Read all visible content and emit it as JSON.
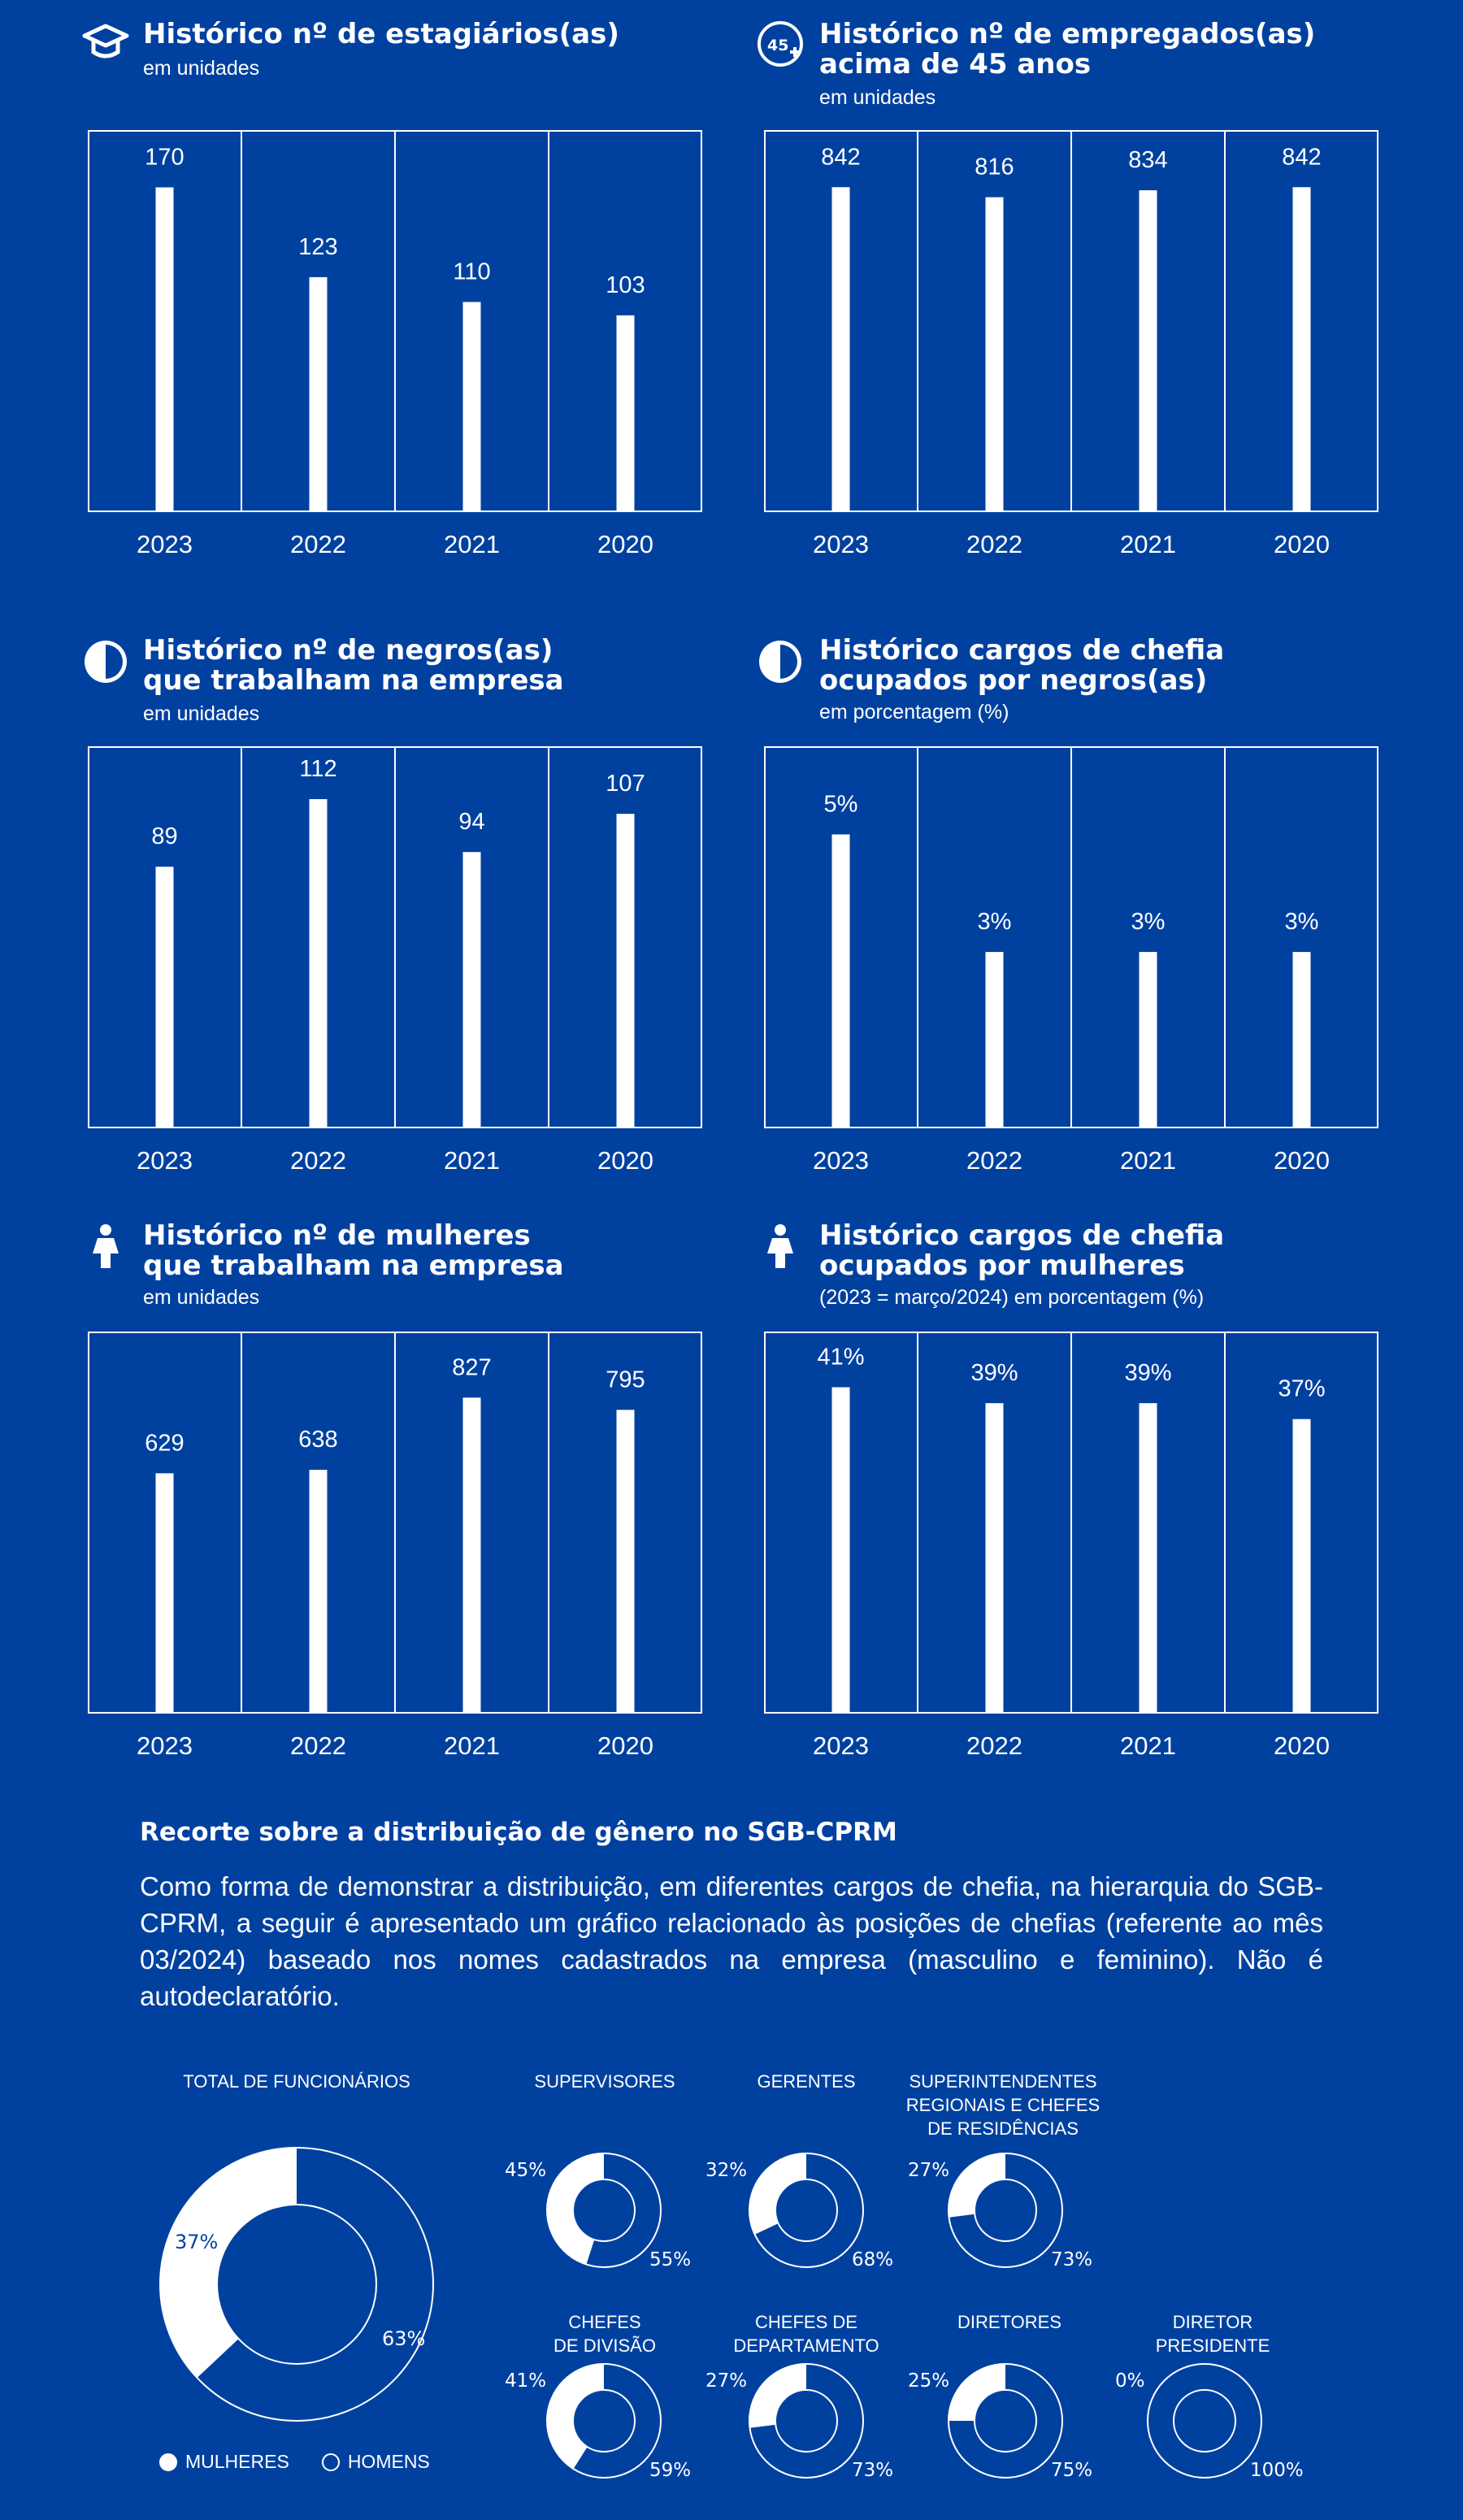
{
  "colors": {
    "background": "#0041a0",
    "foreground": "#ffffff"
  },
  "panels": [
    {
      "icon": "graduation-cap-icon",
      "title_lines": [
        "Histórico nº de estagiários(as)"
      ],
      "subtitle": "em unidades"
    },
    {
      "icon": "age-45-plus-icon",
      "title_lines": [
        "Histórico nº de empregados(as)",
        "acima de 45 anos"
      ],
      "subtitle": "em unidades"
    },
    {
      "icon": "half-circle-icon",
      "title_lines": [
        "Histórico nº de negros(as)",
        "que trabalham na empresa"
      ],
      "subtitle": "em unidades"
    },
    {
      "icon": "half-circle-icon",
      "title_lines": [
        "Histórico cargos de chefia",
        "ocupados por negros(as)"
      ],
      "subtitle": "em porcentagem (%)"
    },
    {
      "icon": "woman-icon",
      "title_lines": [
        "Histórico nº de mulheres",
        "que trabalham na empresa"
      ],
      "subtitle": "em unidades"
    },
    {
      "icon": "woman-icon",
      "title_lines": [
        "Histórico cargos de chefia",
        "ocupados por mulheres"
      ],
      "subtitle": "(2023 = março/2024) em porcentagem (%)"
    }
  ],
  "chart_data": [
    {
      "type": "bar",
      "title": "Histórico nº de estagiários(as)",
      "categories": [
        "2023",
        "2022",
        "2021",
        "2020"
      ],
      "values": [
        170,
        123,
        110,
        103
      ],
      "labels": [
        "170",
        "123",
        "110",
        "103"
      ],
      "ylim": [
        0,
        200
      ]
    },
    {
      "type": "bar",
      "title": "Histórico nº de empregados(as) acima de 45 anos",
      "categories": [
        "2023",
        "2022",
        "2021",
        "2020"
      ],
      "values": [
        842,
        816,
        834,
        842
      ],
      "labels": [
        "842",
        "816",
        "834",
        "842"
      ],
      "ylim": [
        0,
        990
      ]
    },
    {
      "type": "bar",
      "title": "Histórico nº de negros(as) que trabalham na empresa",
      "categories": [
        "2023",
        "2022",
        "2021",
        "2020"
      ],
      "values": [
        89,
        112,
        94,
        107
      ],
      "labels": [
        "89",
        "112",
        "94",
        "107"
      ],
      "ylim": [
        0,
        130
      ]
    },
    {
      "type": "bar",
      "title": "Histórico cargos de chefia ocupados por negros(as)",
      "categories": [
        "2023",
        "2022",
        "2021",
        "2020"
      ],
      "values": [
        5,
        3,
        3,
        3
      ],
      "labels": [
        "5%",
        "3%",
        "3%",
        "3%"
      ],
      "ylim": [
        0,
        6.5
      ]
    },
    {
      "type": "bar",
      "title": "Histórico nº de mulheres que trabalham na empresa",
      "categories": [
        "2023",
        "2022",
        "2021",
        "2020"
      ],
      "values": [
        629,
        638,
        827,
        795
      ],
      "labels": [
        "629",
        "638",
        "827",
        "795"
      ],
      "ylim": [
        0,
        1000
      ]
    },
    {
      "type": "bar",
      "title": "Histórico cargos de chefia ocupados por mulheres",
      "categories": [
        "2023",
        "2022",
        "2021",
        "2020"
      ],
      "values": [
        41,
        39,
        39,
        37
      ],
      "labels": [
        "41%",
        "39%",
        "39%",
        "37%"
      ],
      "ylim": [
        0,
        48
      ]
    },
    {
      "type": "pie",
      "title": "TOTAL DE FUNCIONÁRIOS",
      "slices": [
        {
          "name": "MULHERES",
          "value": 37,
          "label": "37%"
        },
        {
          "name": "HOMENS",
          "value": 63,
          "label": "63%"
        }
      ]
    },
    {
      "type": "pie",
      "title": "SUPERVISORES",
      "slices": [
        {
          "name": "MULHERES",
          "value": 45,
          "label": "45%"
        },
        {
          "name": "HOMENS",
          "value": 55,
          "label": "55%"
        }
      ]
    },
    {
      "type": "pie",
      "title": "GERENTES",
      "slices": [
        {
          "name": "MULHERES",
          "value": 32,
          "label": "32%"
        },
        {
          "name": "HOMENS",
          "value": 68,
          "label": "68%"
        }
      ]
    },
    {
      "type": "pie",
      "title": "SUPERINTENDENTES REGIONAIS E CHEFES DE RESIDÊNCIAS",
      "slices": [
        {
          "name": "MULHERES",
          "value": 27,
          "label": "27%"
        },
        {
          "name": "HOMENS",
          "value": 73,
          "label": "73%"
        }
      ]
    },
    {
      "type": "pie",
      "title": "CHEFES DE DIVISÃO",
      "slices": [
        {
          "name": "MULHERES",
          "value": 41,
          "label": "41%"
        },
        {
          "name": "HOMENS",
          "value": 59,
          "label": "59%"
        }
      ]
    },
    {
      "type": "pie",
      "title": "CHEFES DE DEPARTAMENTO",
      "slices": [
        {
          "name": "MULHERES",
          "value": 27,
          "label": "27%"
        },
        {
          "name": "HOMENS",
          "value": 73,
          "label": "73%"
        }
      ]
    },
    {
      "type": "pie",
      "title": "DIRETORES",
      "slices": [
        {
          "name": "MULHERES",
          "value": 25,
          "label": "25%"
        },
        {
          "name": "HOMENS",
          "value": 75,
          "label": "75%"
        }
      ]
    },
    {
      "type": "pie",
      "title": "DIRETOR PRESIDENTE",
      "slices": [
        {
          "name": "MULHERES",
          "value": 0,
          "label": "0%"
        },
        {
          "name": "HOMENS",
          "value": 100,
          "label": "100%"
        }
      ]
    }
  ],
  "donut_titles": [
    [
      "TOTAL DE FUNCIONÁRIOS"
    ],
    [
      "SUPERVISORES"
    ],
    [
      "GERENTES"
    ],
    [
      "SUPERINTENDENTES",
      "REGIONAIS E CHEFES",
      "DE RESIDÊNCIAS"
    ],
    [
      "CHEFES",
      "DE DIVISÃO"
    ],
    [
      "CHEFES DE",
      "DEPARTAMENTO"
    ],
    [
      "DIRETORES"
    ],
    [
      "DIRETOR",
      "PRESIDENTE"
    ]
  ],
  "section": {
    "title": "Recorte sobre a distribuição de gênero no SGB-CPRM",
    "body": "Como forma de demonstrar a distribuição, em diferentes cargos de chefia, na hierarquia do SGB-CPRM, a seguir é apresentado um gráfico relacionado às posições de chefias (referente ao mês 03/2024) baseado nos nomes cadastrados na empresa (masculino e feminino). Não é autodeclaratório."
  },
  "legend": {
    "women": "MULHERES",
    "men": "HOMENS"
  }
}
